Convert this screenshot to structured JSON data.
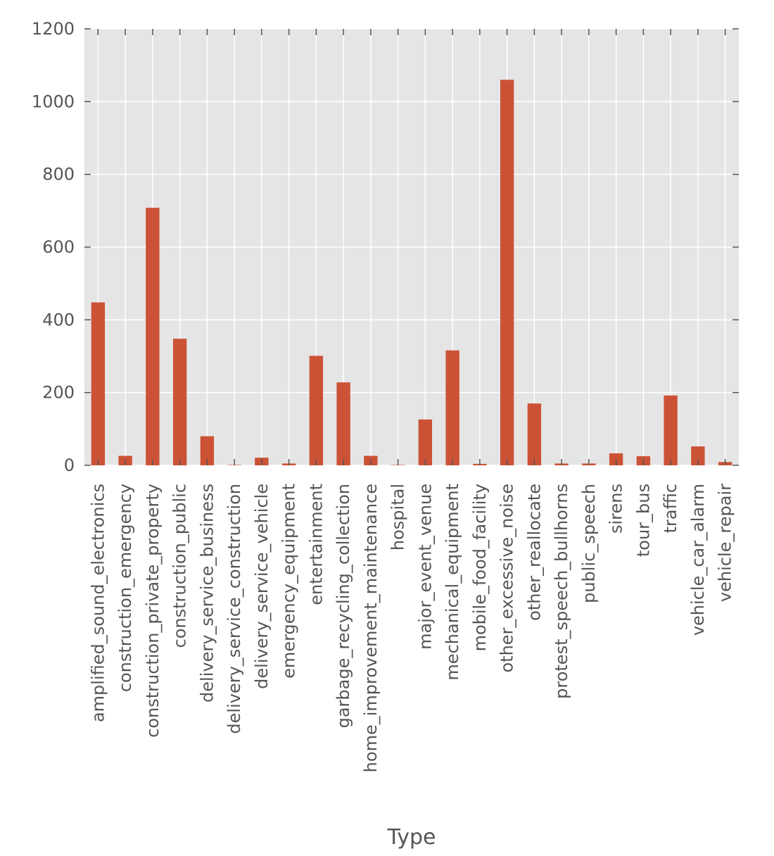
{
  "chart_data": {
    "type": "bar",
    "title": "",
    "xlabel": "Type",
    "ylabel": "",
    "ylim": [
      0,
      1200
    ],
    "yticks": [
      0,
      200,
      400,
      600,
      800,
      1000,
      1200
    ],
    "grid": true,
    "legend": "none",
    "categories": [
      "amplified_sound_electronics",
      "construction_emergency",
      "construction_private_property",
      "construction_public",
      "delivery_service_business",
      "delivery_service_construction",
      "delivery_service_vehicle",
      "emergency_equipment",
      "entertainment",
      "garbage_recycling_collection",
      "home_improvement_maintenance",
      "hospital",
      "major_event_venue",
      "mechanical_equipment",
      "mobile_food_facility",
      "other_excessive_noise",
      "other_reallocate",
      "protest_speech_bullhorns",
      "public_speech",
      "sirens",
      "tour_bus",
      "traffic",
      "vehicle_car_alarm",
      "vehicle_repair"
    ],
    "values": [
      448,
      26,
      708,
      348,
      80,
      1,
      21,
      5,
      301,
      228,
      26,
      1,
      126,
      316,
      4,
      1060,
      170,
      5,
      5,
      33,
      25,
      192,
      52,
      9
    ],
    "colors": {
      "bar": "#cc5236",
      "plot_background": "#e5e5e5",
      "grid": "#ffffff",
      "text": "#555555",
      "tick": "#555555"
    }
  }
}
